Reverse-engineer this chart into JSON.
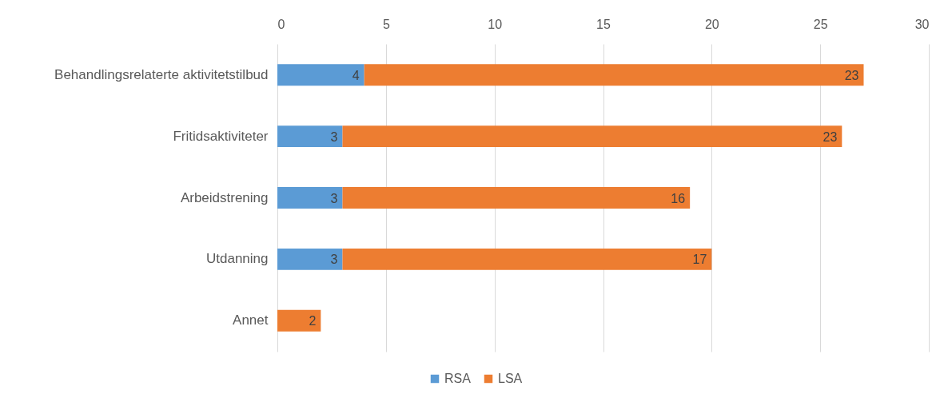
{
  "chart_data": {
    "type": "bar",
    "orientation": "horizontal",
    "stacked": true,
    "categories": [
      "Behandlingsrelaterte aktivitetstilbud",
      "Fritidsaktiviteter",
      "Arbeidstrening",
      "Utdanning",
      "Annet"
    ],
    "series": [
      {
        "name": "RSA",
        "color": "#5b9bd5",
        "values": [
          4,
          3,
          3,
          3,
          null
        ]
      },
      {
        "name": "LSA",
        "color": "#ed7d31",
        "values": [
          23,
          23,
          16,
          17,
          2
        ]
      }
    ],
    "xlim": [
      0,
      30
    ],
    "xticks": [
      0,
      5,
      10,
      15,
      20,
      25,
      30
    ],
    "grid": "x",
    "legend": "bottom",
    "data_labels": true
  }
}
